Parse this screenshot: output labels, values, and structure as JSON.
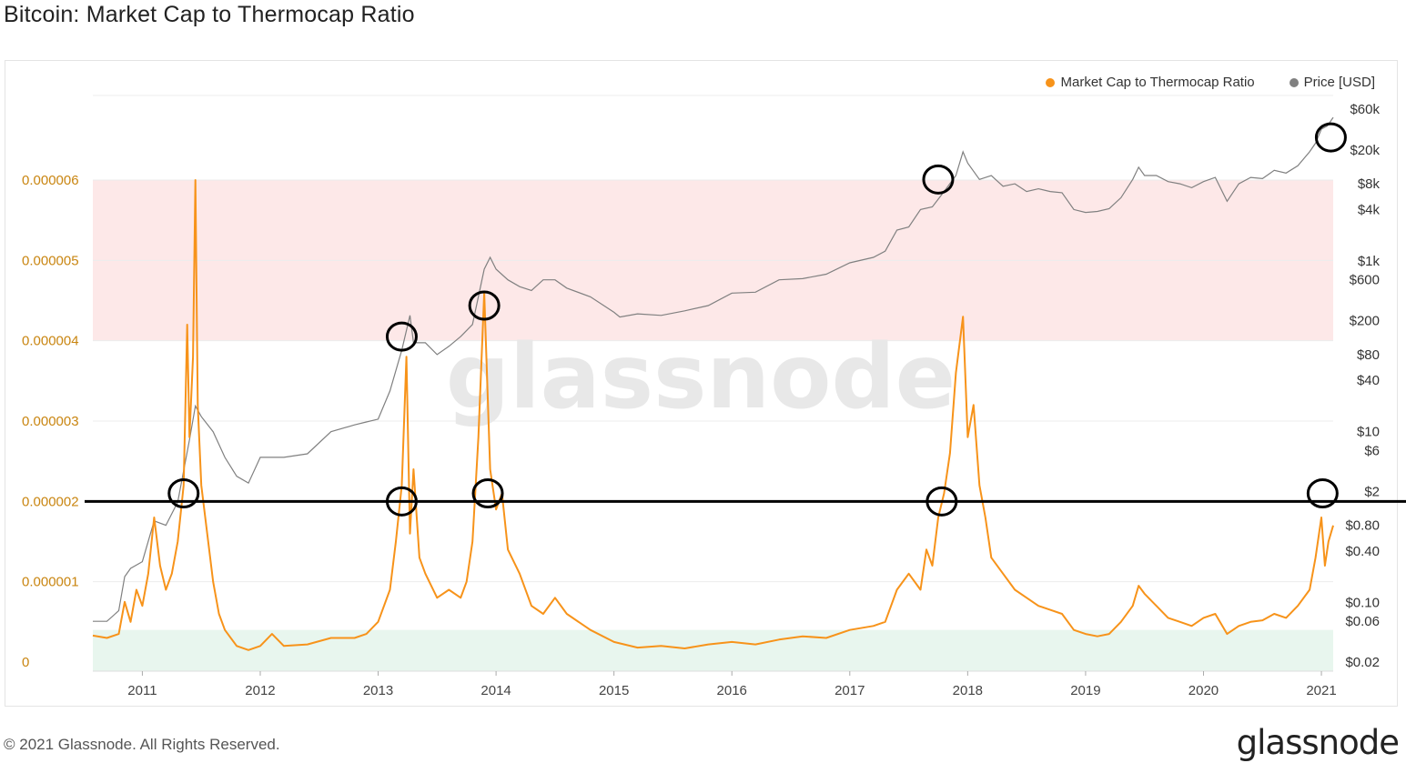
{
  "page": {
    "title": "Bitcoin: Market Cap to Thermocap Ratio",
    "copyright": "© 2021 Glassnode. All Rights Reserved.",
    "brand": "glassnode",
    "watermark": "glassnode"
  },
  "colors": {
    "ratio_line": "#f7931a",
    "price_line": "#808080",
    "red_band": "#fde8e8",
    "green_band": "#e8f6ee",
    "annotation": "#000000"
  },
  "legend": [
    {
      "label": "Market Cap to Thermocap Ratio",
      "color": "#f7931a"
    },
    {
      "label": "Price [USD]",
      "color": "#808080"
    }
  ],
  "chart_data": {
    "type": "line",
    "title": "Bitcoin: Market Cap to Thermocap Ratio",
    "x_tick_labels": [
      "2011",
      "2012",
      "2013",
      "2014",
      "2015",
      "2016",
      "2017",
      "2018",
      "2019",
      "2020",
      "2021"
    ],
    "x_range": [
      2010.58,
      2021.1
    ],
    "left_axis": {
      "ticks": [
        {
          "v": 6e-06,
          "label": "0.000006"
        },
        {
          "v": 5e-06,
          "label": "0.000005"
        },
        {
          "v": 4e-06,
          "label": "0.000004"
        },
        {
          "v": 3e-06,
          "label": "0.000003"
        },
        {
          "v": 2e-06,
          "label": "0.000002"
        },
        {
          "v": 1e-06,
          "label": "0.000001"
        },
        {
          "v": 0,
          "label": "0"
        }
      ],
      "range": [
        0,
        7e-06
      ]
    },
    "right_axis": {
      "scale": "log",
      "range": [
        0.02,
        60000
      ],
      "ticks": [
        {
          "v": 60000,
          "label": "$60k"
        },
        {
          "v": 20000,
          "label": "$20k"
        },
        {
          "v": 8000,
          "label": "$8k"
        },
        {
          "v": 4000,
          "label": "$4k"
        },
        {
          "v": 1000,
          "label": "$1k"
        },
        {
          "v": 600,
          "label": "$600"
        },
        {
          "v": 200,
          "label": "$200"
        },
        {
          "v": 80,
          "label": "$80"
        },
        {
          "v": 40,
          "label": "$40"
        },
        {
          "v": 10,
          "label": "$10"
        },
        {
          "v": 6,
          "label": "$6"
        },
        {
          "v": 2,
          "label": "$2"
        },
        {
          "v": 0.8,
          "label": "$0.80"
        },
        {
          "v": 0.4,
          "label": "$0.40"
        },
        {
          "v": 0.1,
          "label": "$0.10"
        },
        {
          "v": 0.06,
          "label": "$0.06"
        },
        {
          "v": 0.02,
          "label": "$0.02"
        }
      ]
    },
    "bands": [
      {
        "from": 4e-06,
        "to": 6e-06,
        "color": "#fde8e8"
      },
      {
        "from": 0,
        "to": 4e-07,
        "color": "#e8f6ee"
      }
    ],
    "threshold_line": 2e-06,
    "series": [
      {
        "name": "Market Cap to Thermocap Ratio",
        "axis": "left",
        "color": "#f7931a",
        "points": [
          [
            2010.58,
            3.3e-07
          ],
          [
            2010.7,
            3e-07
          ],
          [
            2010.8,
            3.5e-07
          ],
          [
            2010.85,
            7.5e-07
          ],
          [
            2010.9,
            5e-07
          ],
          [
            2010.95,
            9e-07
          ],
          [
            2011.0,
            7e-07
          ],
          [
            2011.05,
            1.1e-06
          ],
          [
            2011.1,
            1.8e-06
          ],
          [
            2011.15,
            1.2e-06
          ],
          [
            2011.2,
            9e-07
          ],
          [
            2011.25,
            1.1e-06
          ],
          [
            2011.3,
            1.5e-06
          ],
          [
            2011.35,
            2.2e-06
          ],
          [
            2011.38,
            4.2e-06
          ],
          [
            2011.4,
            2.8e-06
          ],
          [
            2011.43,
            3.8e-06
          ],
          [
            2011.45,
            6e-06
          ],
          [
            2011.47,
            3.2e-06
          ],
          [
            2011.5,
            2.2e-06
          ],
          [
            2011.55,
            1.6e-06
          ],
          [
            2011.6,
            1e-06
          ],
          [
            2011.65,
            6e-07
          ],
          [
            2011.7,
            4e-07
          ],
          [
            2011.8,
            2e-07
          ],
          [
            2011.9,
            1.5e-07
          ],
          [
            2012.0,
            2e-07
          ],
          [
            2012.1,
            3.5e-07
          ],
          [
            2012.2,
            2e-07
          ],
          [
            2012.4,
            2.2e-07
          ],
          [
            2012.6,
            3e-07
          ],
          [
            2012.8,
            3e-07
          ],
          [
            2012.9,
            3.5e-07
          ],
          [
            2013.0,
            5e-07
          ],
          [
            2013.1,
            9e-07
          ],
          [
            2013.15,
            1.5e-06
          ],
          [
            2013.2,
            2.2e-06
          ],
          [
            2013.24,
            3.8e-06
          ],
          [
            2013.27,
            1.6e-06
          ],
          [
            2013.3,
            2.4e-06
          ],
          [
            2013.35,
            1.3e-06
          ],
          [
            2013.4,
            1.1e-06
          ],
          [
            2013.5,
            8e-07
          ],
          [
            2013.6,
            9e-07
          ],
          [
            2013.7,
            8e-07
          ],
          [
            2013.75,
            1e-06
          ],
          [
            2013.8,
            1.5e-06
          ],
          [
            2013.85,
            2.8e-06
          ],
          [
            2013.9,
            4.6e-06
          ],
          [
            2013.95,
            2.4e-06
          ],
          [
            2014.0,
            1.9e-06
          ],
          [
            2014.05,
            2.1e-06
          ],
          [
            2014.1,
            1.4e-06
          ],
          [
            2014.2,
            1.1e-06
          ],
          [
            2014.3,
            7e-07
          ],
          [
            2014.4,
            6e-07
          ],
          [
            2014.5,
            8e-07
          ],
          [
            2014.6,
            6e-07
          ],
          [
            2014.8,
            4e-07
          ],
          [
            2015.0,
            2.5e-07
          ],
          [
            2015.2,
            1.8e-07
          ],
          [
            2015.4,
            2e-07
          ],
          [
            2015.6,
            1.7e-07
          ],
          [
            2015.8,
            2.2e-07
          ],
          [
            2016.0,
            2.5e-07
          ],
          [
            2016.2,
            2.2e-07
          ],
          [
            2016.4,
            2.8e-07
          ],
          [
            2016.6,
            3.2e-07
          ],
          [
            2016.8,
            3e-07
          ],
          [
            2017.0,
            4e-07
          ],
          [
            2017.2,
            4.5e-07
          ],
          [
            2017.3,
            5e-07
          ],
          [
            2017.4,
            9e-07
          ],
          [
            2017.5,
            1.1e-06
          ],
          [
            2017.6,
            9e-07
          ],
          [
            2017.65,
            1.4e-06
          ],
          [
            2017.7,
            1.2e-06
          ],
          [
            2017.75,
            1.8e-06
          ],
          [
            2017.8,
            2.1e-06
          ],
          [
            2017.85,
            2.6e-06
          ],
          [
            2017.9,
            3.6e-06
          ],
          [
            2017.96,
            4.3e-06
          ],
          [
            2018.0,
            2.8e-06
          ],
          [
            2018.05,
            3.2e-06
          ],
          [
            2018.1,
            2.2e-06
          ],
          [
            2018.15,
            1.8e-06
          ],
          [
            2018.2,
            1.3e-06
          ],
          [
            2018.3,
            1.1e-06
          ],
          [
            2018.4,
            9e-07
          ],
          [
            2018.5,
            8e-07
          ],
          [
            2018.6,
            7e-07
          ],
          [
            2018.7,
            6.5e-07
          ],
          [
            2018.8,
            6e-07
          ],
          [
            2018.9,
            4e-07
          ],
          [
            2019.0,
            3.5e-07
          ],
          [
            2019.1,
            3.2e-07
          ],
          [
            2019.2,
            3.5e-07
          ],
          [
            2019.3,
            5e-07
          ],
          [
            2019.4,
            7e-07
          ],
          [
            2019.45,
            9.5e-07
          ],
          [
            2019.5,
            8.5e-07
          ],
          [
            2019.6,
            7e-07
          ],
          [
            2019.7,
            5.5e-07
          ],
          [
            2019.8,
            5e-07
          ],
          [
            2019.9,
            4.5e-07
          ],
          [
            2020.0,
            5.5e-07
          ],
          [
            2020.1,
            6e-07
          ],
          [
            2020.2,
            3.5e-07
          ],
          [
            2020.3,
            4.5e-07
          ],
          [
            2020.4,
            5e-07
          ],
          [
            2020.5,
            5.2e-07
          ],
          [
            2020.6,
            6e-07
          ],
          [
            2020.7,
            5.5e-07
          ],
          [
            2020.8,
            7e-07
          ],
          [
            2020.9,
            9e-07
          ],
          [
            2020.95,
            1.3e-06
          ],
          [
            2021.0,
            1.8e-06
          ],
          [
            2021.03,
            1.2e-06
          ],
          [
            2021.06,
            1.5e-06
          ],
          [
            2021.1,
            1.7e-06
          ]
        ]
      },
      {
        "name": "Price [USD]",
        "axis": "right",
        "color": "#808080",
        "points": [
          [
            2010.58,
            0.06
          ],
          [
            2010.7,
            0.06
          ],
          [
            2010.8,
            0.08
          ],
          [
            2010.85,
            0.2
          ],
          [
            2010.9,
            0.25
          ],
          [
            2011.0,
            0.3
          ],
          [
            2011.1,
            0.9
          ],
          [
            2011.2,
            0.8
          ],
          [
            2011.3,
            1.5
          ],
          [
            2011.4,
            8
          ],
          [
            2011.45,
            20
          ],
          [
            2011.5,
            15
          ],
          [
            2011.6,
            10
          ],
          [
            2011.7,
            5
          ],
          [
            2011.8,
            3
          ],
          [
            2011.9,
            2.5
          ],
          [
            2012.0,
            5
          ],
          [
            2012.2,
            5
          ],
          [
            2012.4,
            5.5
          ],
          [
            2012.6,
            10
          ],
          [
            2012.8,
            12
          ],
          [
            2012.9,
            13
          ],
          [
            2013.0,
            14
          ],
          [
            2013.1,
            30
          ],
          [
            2013.2,
            90
          ],
          [
            2013.27,
            230
          ],
          [
            2013.3,
            110
          ],
          [
            2013.4,
            110
          ],
          [
            2013.5,
            80
          ],
          [
            2013.6,
            100
          ],
          [
            2013.7,
            130
          ],
          [
            2013.8,
            180
          ],
          [
            2013.9,
            800
          ],
          [
            2013.95,
            1100
          ],
          [
            2014.0,
            800
          ],
          [
            2014.1,
            600
          ],
          [
            2014.2,
            500
          ],
          [
            2014.3,
            450
          ],
          [
            2014.4,
            600
          ],
          [
            2014.5,
            600
          ],
          [
            2014.6,
            480
          ],
          [
            2014.8,
            380
          ],
          [
            2015.0,
            250
          ],
          [
            2015.05,
            220
          ],
          [
            2015.2,
            240
          ],
          [
            2015.4,
            230
          ],
          [
            2015.6,
            260
          ],
          [
            2015.8,
            300
          ],
          [
            2016.0,
            420
          ],
          [
            2016.2,
            430
          ],
          [
            2016.4,
            600
          ],
          [
            2016.6,
            620
          ],
          [
            2016.8,
            700
          ],
          [
            2017.0,
            950
          ],
          [
            2017.2,
            1100
          ],
          [
            2017.3,
            1300
          ],
          [
            2017.4,
            2300
          ],
          [
            2017.5,
            2500
          ],
          [
            2017.6,
            4000
          ],
          [
            2017.7,
            4300
          ],
          [
            2017.8,
            6500
          ],
          [
            2017.9,
            10000
          ],
          [
            2017.96,
            19000
          ],
          [
            2018.0,
            14000
          ],
          [
            2018.1,
            9000
          ],
          [
            2018.2,
            10000
          ],
          [
            2018.3,
            7500
          ],
          [
            2018.4,
            8000
          ],
          [
            2018.5,
            6500
          ],
          [
            2018.6,
            7000
          ],
          [
            2018.7,
            6500
          ],
          [
            2018.8,
            6300
          ],
          [
            2018.9,
            4000
          ],
          [
            2019.0,
            3700
          ],
          [
            2019.1,
            3800
          ],
          [
            2019.2,
            4100
          ],
          [
            2019.3,
            5500
          ],
          [
            2019.4,
            9000
          ],
          [
            2019.45,
            12500
          ],
          [
            2019.5,
            10000
          ],
          [
            2019.6,
            10000
          ],
          [
            2019.7,
            8500
          ],
          [
            2019.8,
            8000
          ],
          [
            2019.9,
            7200
          ],
          [
            2020.0,
            8500
          ],
          [
            2020.1,
            9500
          ],
          [
            2020.2,
            5000
          ],
          [
            2020.3,
            8000
          ],
          [
            2020.4,
            9500
          ],
          [
            2020.5,
            9200
          ],
          [
            2020.6,
            11500
          ],
          [
            2020.7,
            10700
          ],
          [
            2020.8,
            13000
          ],
          [
            2020.9,
            19000
          ],
          [
            2020.95,
            24000
          ],
          [
            2021.0,
            35000
          ],
          [
            2021.05,
            38000
          ],
          [
            2021.1,
            48000
          ]
        ]
      }
    ],
    "annotations": [
      {
        "x": 2011.35,
        "axis": "left",
        "y": 2.1e-06
      },
      {
        "x": 2013.2,
        "axis": "left",
        "y": 2e-06
      },
      {
        "x": 2013.2,
        "axis": "right",
        "y": 130
      },
      {
        "x": 2013.93,
        "axis": "left",
        "y": 2.1e-06
      },
      {
        "x": 2013.9,
        "axis": "right",
        "y": 300
      },
      {
        "x": 2017.78,
        "axis": "left",
        "y": 2e-06
      },
      {
        "x": 2017.75,
        "axis": "right",
        "y": 9000
      },
      {
        "x": 2021.01,
        "axis": "left",
        "y": 2.1e-06
      },
      {
        "x": 2021.08,
        "axis": "right",
        "y": 28000
      }
    ]
  }
}
